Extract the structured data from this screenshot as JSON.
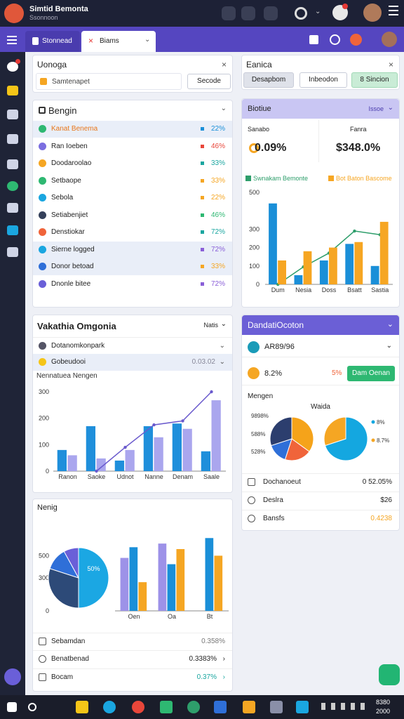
{
  "top_bar": {
    "app_name": "Simtid Bemonta",
    "app_subtitle": "Ssonnoon"
  },
  "tabs": [
    "Stonnead",
    "Biams"
  ],
  "left": {
    "search_panel": {
      "title": "Uonoga",
      "placeholder": "Samtenapet",
      "button": "Secode"
    },
    "list_panel": {
      "title": "Bengin",
      "rows": [
        {
          "label": "Kanat Benema",
          "value": "22%"
        },
        {
          "label": "Ran Ioeben",
          "value": "46%"
        },
        {
          "label": "Doodaroolao",
          "value": "33%"
        },
        {
          "label": "Setbaope",
          "value": "33%"
        },
        {
          "label": "Sebola",
          "value": "22%"
        },
        {
          "label": "Setiabenjiet",
          "value": "46%"
        },
        {
          "label": "Denstiokar",
          "value": "72%"
        },
        {
          "label": "Sierne logged",
          "value": "72%"
        },
        {
          "label": "Donor betoad",
          "value": "33%"
        },
        {
          "label": "Dnonle bitee",
          "value": "72%"
        }
      ]
    },
    "chart_panel": {
      "title": "Vakathia Omgonia",
      "filter": "Natis",
      "rows": [
        {
          "label": "Dotanomkonpark"
        },
        {
          "label": "Gobeudooi",
          "value": "0.03.02"
        }
      ]
    },
    "pie_panel": {
      "title": "Nenig",
      "rows": [
        {
          "label": "Sebamdan",
          "value": "0.358%"
        },
        {
          "label": "Benatbenad",
          "value": "0.3383%"
        },
        {
          "label": "Bocam",
          "value": "0.37%"
        }
      ]
    }
  },
  "right": {
    "action_panel": {
      "title": "Eanica",
      "buttons": [
        "Desapbom",
        "Inbeodon",
        "8 Sincion"
      ]
    },
    "stats_panel": {
      "title": "Biotiue",
      "filter": "Issoe",
      "stats": [
        {
          "label": "Sanabo",
          "value": "0.09%"
        },
        {
          "label": "Fanra",
          "value": "$348.0%"
        }
      ]
    },
    "detail_panel": {
      "title": "DandatiOcoton",
      "row_one": "AR89/96",
      "row_two": {
        "label": "8.2%",
        "value": "5%",
        "button": "Dam Oenan"
      },
      "section": "Mengen",
      "pie_title": "Waida",
      "rows": [
        {
          "label": "Dochanoeut",
          "value": "0 52.05%"
        },
        {
          "label": "Deslra",
          "value": "$26"
        },
        {
          "label": "Bansfs",
          "value": "0.4238"
        }
      ]
    }
  },
  "taskbar": {
    "time": "8380",
    "date": "2000"
  },
  "chart_data": [
    {
      "type": "bar",
      "title": "Nennatuea Nengen",
      "categories": [
        "Ranon",
        "Saoke",
        "Udnot",
        "Nanne",
        "Denam",
        "Saale"
      ],
      "series": [
        {
          "color": "#1f8fdb",
          "values": [
            80,
            170,
            40,
            170,
            180,
            75
          ]
        },
        {
          "color": "#aaa6ee",
          "values": [
            60,
            48,
            80,
            128,
            160,
            268
          ]
        },
        {
          "type": "line",
          "color": "#6a5acd",
          "values": [
            null,
            0,
            90,
            175,
            190,
            300
          ]
        }
      ],
      "ylim": [
        0,
        300
      ],
      "yticks": [
        0,
        100,
        200,
        300
      ]
    },
    {
      "type": "pie",
      "values": [
        50,
        30,
        12,
        8
      ],
      "value_labels": [
        "50%",
        null,
        null,
        null
      ],
      "colors": [
        "#1ba7e3",
        "#2d4a78",
        "#2f6fd8",
        "#6a5fd8"
      ]
    },
    {
      "type": "bar",
      "categories": [
        "Oen",
        "Oa",
        "Bt"
      ],
      "series": [
        {
          "color": "#9d92e8",
          "values": [
            480,
            610,
            0
          ]
        },
        {
          "color": "#1a8fd8",
          "values": [
            577,
            423,
            660
          ]
        },
        {
          "color": "#f5a623",
          "values": [
            260,
            560,
            500
          ]
        }
      ],
      "ylim": [
        0,
        700
      ],
      "yticks": [
        0,
        300,
        500
      ]
    },
    {
      "type": "bar",
      "categories": [
        "Dum",
        "Nesia",
        "Doss",
        "Bsatt",
        "Sastia"
      ],
      "series": [
        {
          "color": "#1a8fd8",
          "values": [
            440,
            50,
            130,
            220,
            100
          ]
        },
        {
          "name": "Swnakam Bemonte",
          "type": "line",
          "color": "#2e9e6b",
          "values": [
            0,
            95,
            170,
            290,
            270
          ]
        },
        {
          "name": "Bot Baton Bascome",
          "color": "#f6a623",
          "values": [
            130,
            180,
            200,
            230,
            340
          ]
        }
      ],
      "ylim": [
        0,
        500
      ],
      "yticks": [
        0,
        100,
        200,
        300,
        500
      ]
    },
    {
      "type": "pie",
      "values": [
        35,
        20,
        15,
        30
      ],
      "colors": [
        "#f5a31a",
        "#f0643a",
        "#2f6fd8",
        "#2c3e6e"
      ],
      "annotations": [
        "9898%",
        "588%",
        "528%"
      ]
    },
    {
      "type": "pie",
      "categories": [
        "8%",
        "8.7%"
      ],
      "values": [
        70,
        30
      ],
      "colors": [
        "#14a7e0",
        "#f5a623"
      ]
    }
  ]
}
